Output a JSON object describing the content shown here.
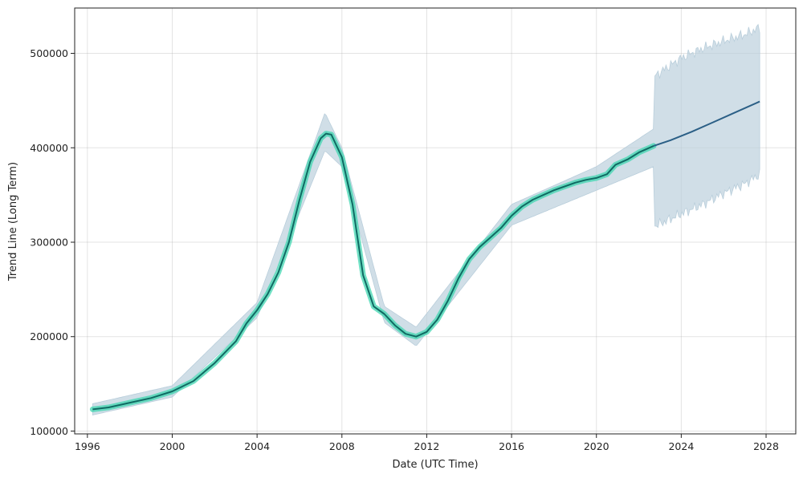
{
  "chart_data": {
    "type": "line",
    "title": "",
    "xlabel": "Date (UTC Time)",
    "ylabel": "Trend Line (Long Term)",
    "xlim": [
      1995.4,
      2029.4
    ],
    "ylim": [
      97000,
      548000
    ],
    "x_ticks": [
      1996,
      2000,
      2004,
      2008,
      2012,
      2016,
      2020,
      2024,
      2028
    ],
    "x_tick_labels": [
      "1996",
      "2000",
      "2004",
      "2008",
      "2012",
      "2016",
      "2020",
      "2024",
      "2028"
    ],
    "y_ticks": [
      100000,
      200000,
      300000,
      400000,
      500000
    ],
    "y_tick_labels": [
      "100000",
      "200000",
      "300000",
      "400000",
      "500000"
    ],
    "grid": true,
    "legend": "none",
    "colors": {
      "history_line": "#0f6b63",
      "history_band": "#40d6b0",
      "forecast_line": "#2b5f86",
      "uncertainty_band": "#b9cedb"
    },
    "history": {
      "x": [
        1996.25,
        1997.0,
        1998.0,
        1999.0,
        2000.0,
        2001.0,
        2002.0,
        2003.0,
        2003.5,
        2004.0,
        2004.5,
        2005.0,
        2005.5,
        2006.0,
        2006.5,
        2007.0,
        2007.25,
        2007.5,
        2008.0,
        2008.5,
        2009.0,
        2009.5,
        2010.0,
        2010.5,
        2011.0,
        2011.5,
        2012.0,
        2012.5,
        2013.0,
        2013.5,
        2014.0,
        2014.5,
        2015.0,
        2015.5,
        2016.0,
        2016.5,
        2017.0,
        2017.5,
        2018.0,
        2018.5,
        2019.0,
        2019.5,
        2020.0,
        2020.5,
        2020.9,
        2021.5,
        2022.0,
        2022.7
      ],
      "y": [
        123000,
        125000,
        130000,
        135000,
        142000,
        153000,
        172000,
        195000,
        214000,
        228000,
        245000,
        268000,
        300000,
        345000,
        385000,
        410000,
        415000,
        414000,
        390000,
        340000,
        265000,
        232000,
        224000,
        212000,
        203000,
        200000,
        205000,
        218000,
        238000,
        262000,
        282000,
        295000,
        305000,
        315000,
        328000,
        338000,
        345000,
        350000,
        355000,
        359000,
        363000,
        366000,
        368000,
        372000,
        382000,
        388000,
        395000,
        402000
      ]
    },
    "forecast": {
      "x": [
        2022.7,
        2023.5,
        2024.5,
        2025.5,
        2026.5,
        2027.7
      ],
      "y": [
        402000,
        408000,
        417000,
        427000,
        437000,
        449000
      ]
    },
    "uncertainty": {
      "x": [
        1996.25,
        2000.0,
        2004.0,
        2007.2,
        2008.0,
        2010.0,
        2011.5,
        2016.0,
        2020.0,
        2022.7,
        2022.75,
        2024.0,
        2025.0,
        2026.0,
        2027.0,
        2027.7
      ],
      "lower": [
        117000,
        136000,
        220000,
        397000,
        380000,
        215000,
        190000,
        318000,
        355000,
        380000,
        317000,
        330000,
        340000,
        352000,
        362000,
        372000
      ],
      "upper": [
        129000,
        148000,
        236000,
        437000,
        400000,
        232000,
        210000,
        340000,
        380000,
        420000,
        476000,
        495000,
        505000,
        513000,
        520000,
        527000
      ]
    }
  }
}
